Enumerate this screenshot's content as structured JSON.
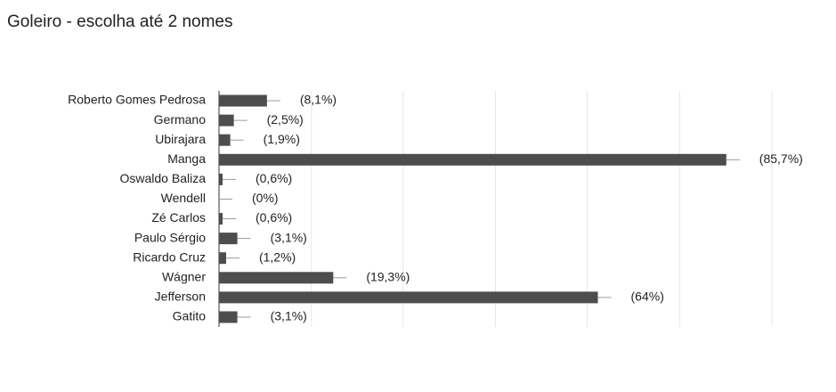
{
  "chart_data": {
    "type": "bar",
    "orientation": "horizontal",
    "title": "Goleiro - escolha até 2 nomes",
    "categories": [
      "Roberto Gomes Pedrosa",
      "Germano",
      "Ubirajara",
      "Manga",
      "Oswaldo Baliza",
      "Wendell",
      "Zé Carlos",
      "Paulo Sérgio",
      "Ricardo Cruz",
      "Wágner",
      "Jefferson",
      "Gatito"
    ],
    "values": [
      8.1,
      2.5,
      1.9,
      85.7,
      0.6,
      0,
      0.6,
      3.1,
      1.2,
      19.3,
      64,
      3.1
    ],
    "value_labels": [
      "(8,1%)",
      "(2,5%)",
      "(1,9%)",
      "(85,7%)",
      "(0,6%)",
      "(0%)",
      "(0,6%)",
      "(3,1%)",
      "(1,2%)",
      "(19,3%)",
      "(64%)",
      "(3,1%)"
    ],
    "color": "#4d4d4d",
    "xlim": [
      0,
      93.4
    ],
    "xticks": [
      0,
      15.6,
      31.1,
      46.7,
      62.2,
      77.8,
      93.4
    ],
    "grid": true
  }
}
